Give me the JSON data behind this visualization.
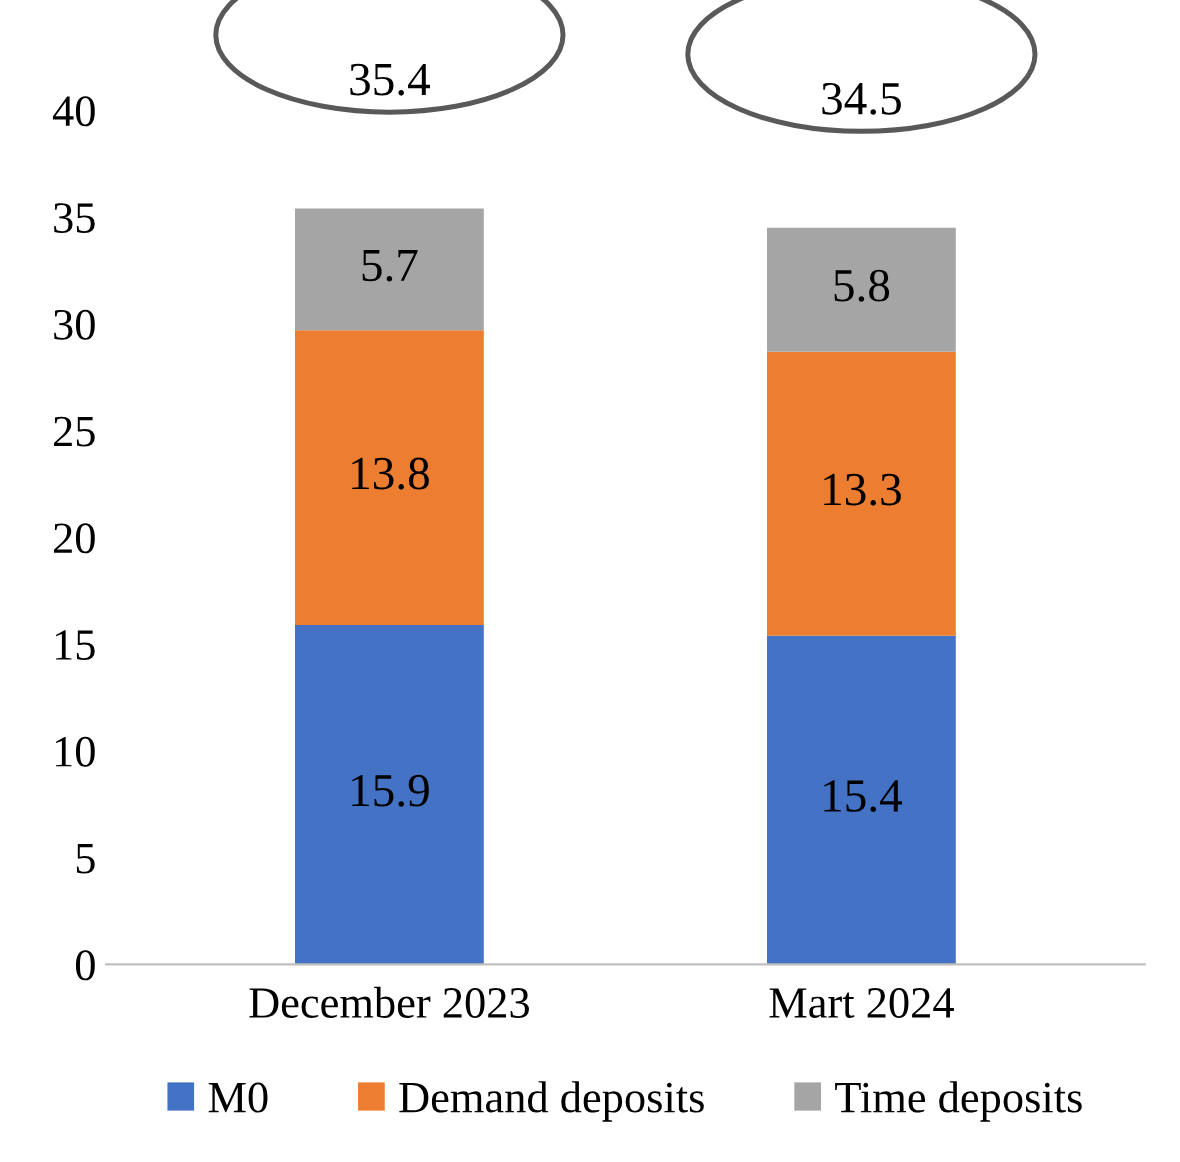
{
  "chart_data": {
    "type": "bar",
    "stacked": true,
    "categories": [
      "December 2023",
      "Mart 2024"
    ],
    "series": [
      {
        "name": "M0",
        "color": "#4472c4",
        "values": [
          15.9,
          15.4
        ]
      },
      {
        "name": "Demand deposits",
        "color": "#ed7d31",
        "values": [
          13.8,
          13.3
        ]
      },
      {
        "name": "Time deposits",
        "color": "#a5a5a5",
        "values": [
          5.7,
          5.8
        ]
      }
    ],
    "ylim": [
      0,
      40
    ],
    "yticks": [
      0,
      5,
      10,
      15,
      20,
      25,
      30,
      35,
      40
    ],
    "grid": false,
    "legend": "bottom",
    "data_labels": true,
    "totals": [
      "35.4",
      "34.5"
    ]
  }
}
